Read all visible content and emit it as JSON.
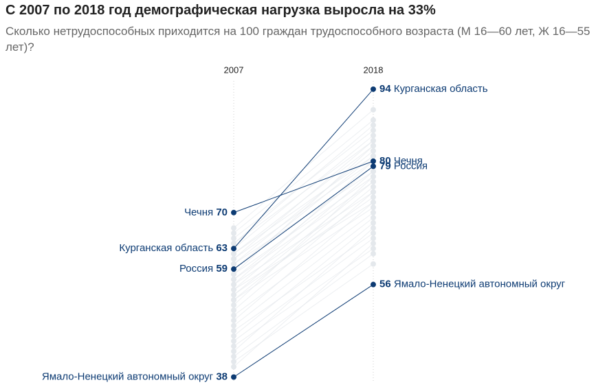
{
  "chart_data": {
    "type": "slope",
    "title": "С 2007 по 2018 год демографическая нагрузка выросла на 33%",
    "subtitle": "Сколько нетрудоспособных приходится на 100 граждан трудоспособного возраста (М 16—60 лет, Ж 16—55 лет)?",
    "categories": [
      "2007",
      "2018"
    ],
    "ylim": [
      37,
      96
    ],
    "series": [
      {
        "name": "Курганская область",
        "color": "#0d3b73",
        "values": [
          63,
          94
        ]
      },
      {
        "name": "Чечня",
        "color": "#0d3b73",
        "values": [
          70,
          80
        ]
      },
      {
        "name": "Россия",
        "color": "#0d3b73",
        "values": [
          59,
          79
        ]
      },
      {
        "name": "Ямало-Ненецкий автономный округ",
        "color": "#0d3b73",
        "values": [
          38,
          56
        ]
      }
    ],
    "background": {
      "color": "#e4e8ec",
      "values": [
        [
          67,
          90
        ],
        [
          66,
          88
        ],
        [
          65,
          86
        ],
        [
          64,
          87
        ],
        [
          64,
          84
        ],
        [
          63,
          85
        ],
        [
          62,
          83
        ],
        [
          62,
          81
        ],
        [
          61,
          84
        ],
        [
          61,
          80
        ],
        [
          60,
          82
        ],
        [
          60,
          78
        ],
        [
          59,
          81
        ],
        [
          58,
          77
        ],
        [
          58,
          83
        ],
        [
          57,
          79
        ],
        [
          57,
          76
        ],
        [
          56,
          80
        ],
        [
          56,
          74
        ],
        [
          55,
          78
        ],
        [
          55,
          72
        ],
        [
          54,
          76
        ],
        [
          54,
          73
        ],
        [
          53,
          75
        ],
        [
          53,
          71
        ],
        [
          52,
          77
        ],
        [
          51,
          74
        ],
        [
          50,
          70
        ],
        [
          49,
          72
        ],
        [
          48,
          69
        ],
        [
          47,
          66
        ],
        [
          46,
          68
        ],
        [
          45,
          65
        ],
        [
          44,
          63
        ],
        [
          43,
          67
        ],
        [
          42,
          62
        ],
        [
          41,
          60
        ],
        [
          40,
          64
        ]
      ]
    }
  }
}
